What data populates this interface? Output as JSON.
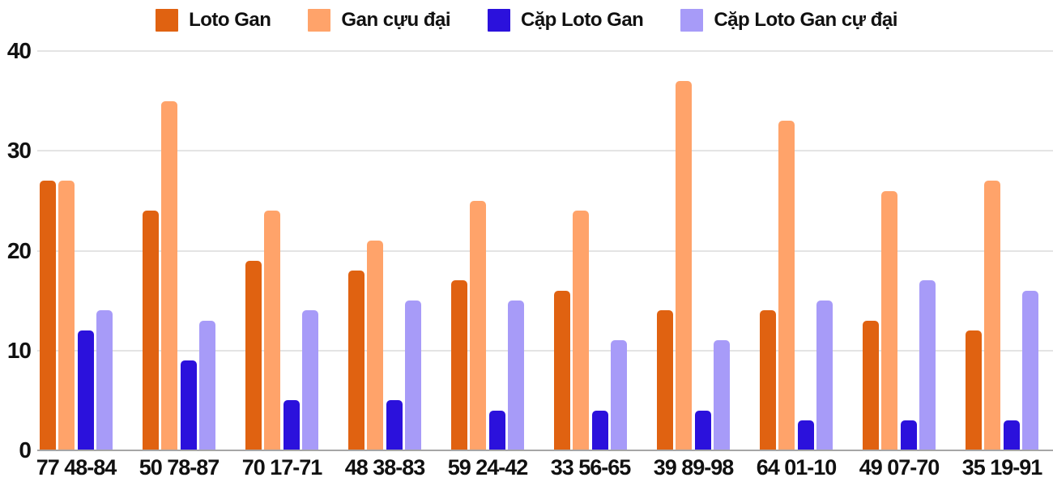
{
  "chart_data": {
    "type": "bar",
    "title": "",
    "xlabel": "",
    "ylabel": "",
    "categories": [
      "77 48-84",
      "50 78-87",
      "70 17-71",
      "48 38-83",
      "59 24-42",
      "33 56-65",
      "39 89-98",
      "64 01-10",
      "49 07-70",
      "35 19-91"
    ],
    "series": [
      {
        "name": "Loto Gan",
        "color": "#e06211",
        "values": [
          27,
          24,
          19,
          18,
          17,
          16,
          14,
          14,
          13,
          12
        ]
      },
      {
        "name": "Gan cựu đại",
        "color": "#ffa36a",
        "values": [
          27,
          35,
          24,
          21,
          25,
          24,
          37,
          33,
          26,
          27
        ]
      },
      {
        "name": "Cặp Loto Gan",
        "color": "#2b11dc",
        "values": [
          12,
          9,
          5,
          5,
          4,
          4,
          4,
          3,
          3,
          3
        ]
      },
      {
        "name": "Cặp Loto Gan cự đại",
        "color": "#a79bf8",
        "values": [
          14,
          13,
          14,
          15,
          15,
          11,
          11,
          15,
          17,
          16
        ]
      }
    ],
    "yticks": [
      0,
      10,
      20,
      30,
      40
    ],
    "ylim": [
      0,
      40
    ],
    "grid": true,
    "legend_position": "top"
  },
  "colors": {
    "background": "#ffffff",
    "gridline": "#e4e4e4",
    "axis_line": "#a6a6a6",
    "label_text": "#111111"
  }
}
